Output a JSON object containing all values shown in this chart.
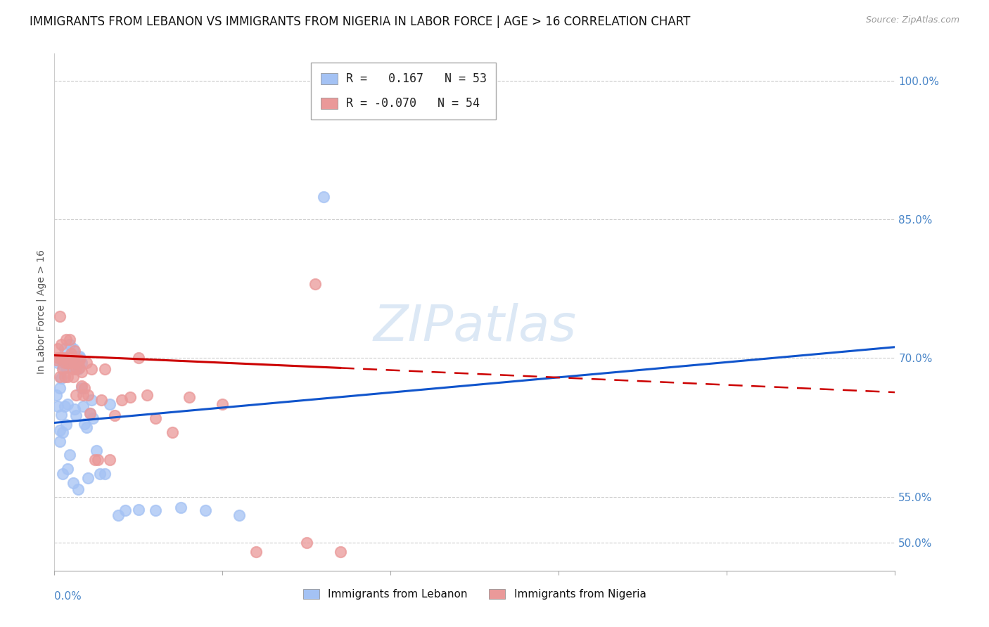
{
  "title": "IMMIGRANTS FROM LEBANON VS IMMIGRANTS FROM NIGERIA IN LABOR FORCE | AGE > 16 CORRELATION CHART",
  "source_text": "Source: ZipAtlas.com",
  "ylabel": "In Labor Force | Age > 16",
  "ytick_values": [
    0.5,
    0.55,
    0.7,
    0.85,
    1.0
  ],
  "xlim": [
    0.0,
    0.5
  ],
  "ylim": [
    0.47,
    1.03
  ],
  "lebanon_R": 0.167,
  "lebanon_N": 53,
  "nigeria_R": -0.07,
  "nigeria_N": 54,
  "lebanon_color": "#a4c2f4",
  "nigeria_color": "#ea9999",
  "lebanon_line_color": "#1155cc",
  "nigeria_line_color": "#cc0000",
  "watermark_text": "ZIPatlas",
  "background_color": "#ffffff",
  "grid_color": "#cccccc",
  "title_fontsize": 12,
  "axis_label_fontsize": 10,
  "tick_fontsize": 11,
  "tick_color": "#4a86c8",
  "lebanon_line_intercept": 0.63,
  "lebanon_line_slope_per_half": 0.082,
  "nigeria_line_intercept": 0.703,
  "nigeria_line_slope_per_half": -0.04,
  "lebanon_scatter_x": [
    0.001,
    0.002,
    0.002,
    0.003,
    0.003,
    0.003,
    0.004,
    0.004,
    0.004,
    0.005,
    0.005,
    0.005,
    0.006,
    0.006,
    0.007,
    0.007,
    0.008,
    0.008,
    0.009,
    0.009,
    0.01,
    0.01,
    0.011,
    0.011,
    0.012,
    0.012,
    0.013,
    0.013,
    0.014,
    0.014,
    0.015,
    0.015,
    0.016,
    0.016,
    0.017,
    0.018,
    0.019,
    0.02,
    0.021,
    0.022,
    0.023,
    0.025,
    0.027,
    0.03,
    0.033,
    0.038,
    0.042,
    0.05,
    0.06,
    0.075,
    0.09,
    0.11,
    0.16
  ],
  "lebanon_scatter_y": [
    0.66,
    0.648,
    0.695,
    0.622,
    0.668,
    0.61,
    0.639,
    0.7,
    0.678,
    0.575,
    0.62,
    0.692,
    0.648,
    0.71,
    0.628,
    0.69,
    0.58,
    0.65,
    0.595,
    0.715,
    0.692,
    0.702,
    0.71,
    0.565,
    0.695,
    0.645,
    0.7,
    0.638,
    0.558,
    0.688,
    0.7,
    0.702,
    0.695,
    0.668,
    0.648,
    0.629,
    0.625,
    0.57,
    0.64,
    0.655,
    0.635,
    0.6,
    0.575,
    0.575,
    0.65,
    0.53,
    0.535,
    0.536,
    0.535,
    0.538,
    0.535,
    0.53,
    0.875
  ],
  "nigeria_scatter_x": [
    0.001,
    0.002,
    0.002,
    0.003,
    0.003,
    0.004,
    0.004,
    0.005,
    0.005,
    0.006,
    0.006,
    0.007,
    0.007,
    0.008,
    0.008,
    0.009,
    0.009,
    0.01,
    0.01,
    0.011,
    0.011,
    0.012,
    0.012,
    0.013,
    0.013,
    0.014,
    0.015,
    0.015,
    0.016,
    0.016,
    0.017,
    0.018,
    0.019,
    0.02,
    0.021,
    0.022,
    0.024,
    0.026,
    0.028,
    0.03,
    0.033,
    0.036,
    0.04,
    0.045,
    0.05,
    0.055,
    0.06,
    0.07,
    0.08,
    0.1,
    0.12,
    0.15,
    0.155,
    0.17
  ],
  "nigeria_scatter_y": [
    0.698,
    0.71,
    0.7,
    0.745,
    0.68,
    0.7,
    0.715,
    0.688,
    0.7,
    0.695,
    0.68,
    0.72,
    0.7,
    0.695,
    0.68,
    0.72,
    0.695,
    0.705,
    0.7,
    0.688,
    0.68,
    0.708,
    0.695,
    0.66,
    0.688,
    0.698,
    0.698,
    0.69,
    0.685,
    0.67,
    0.66,
    0.668,
    0.695,
    0.66,
    0.64,
    0.688,
    0.59,
    0.59,
    0.655,
    0.688,
    0.59,
    0.638,
    0.655,
    0.658,
    0.7,
    0.66,
    0.635,
    0.62,
    0.658,
    0.65,
    0.49,
    0.5,
    0.78,
    0.49
  ]
}
